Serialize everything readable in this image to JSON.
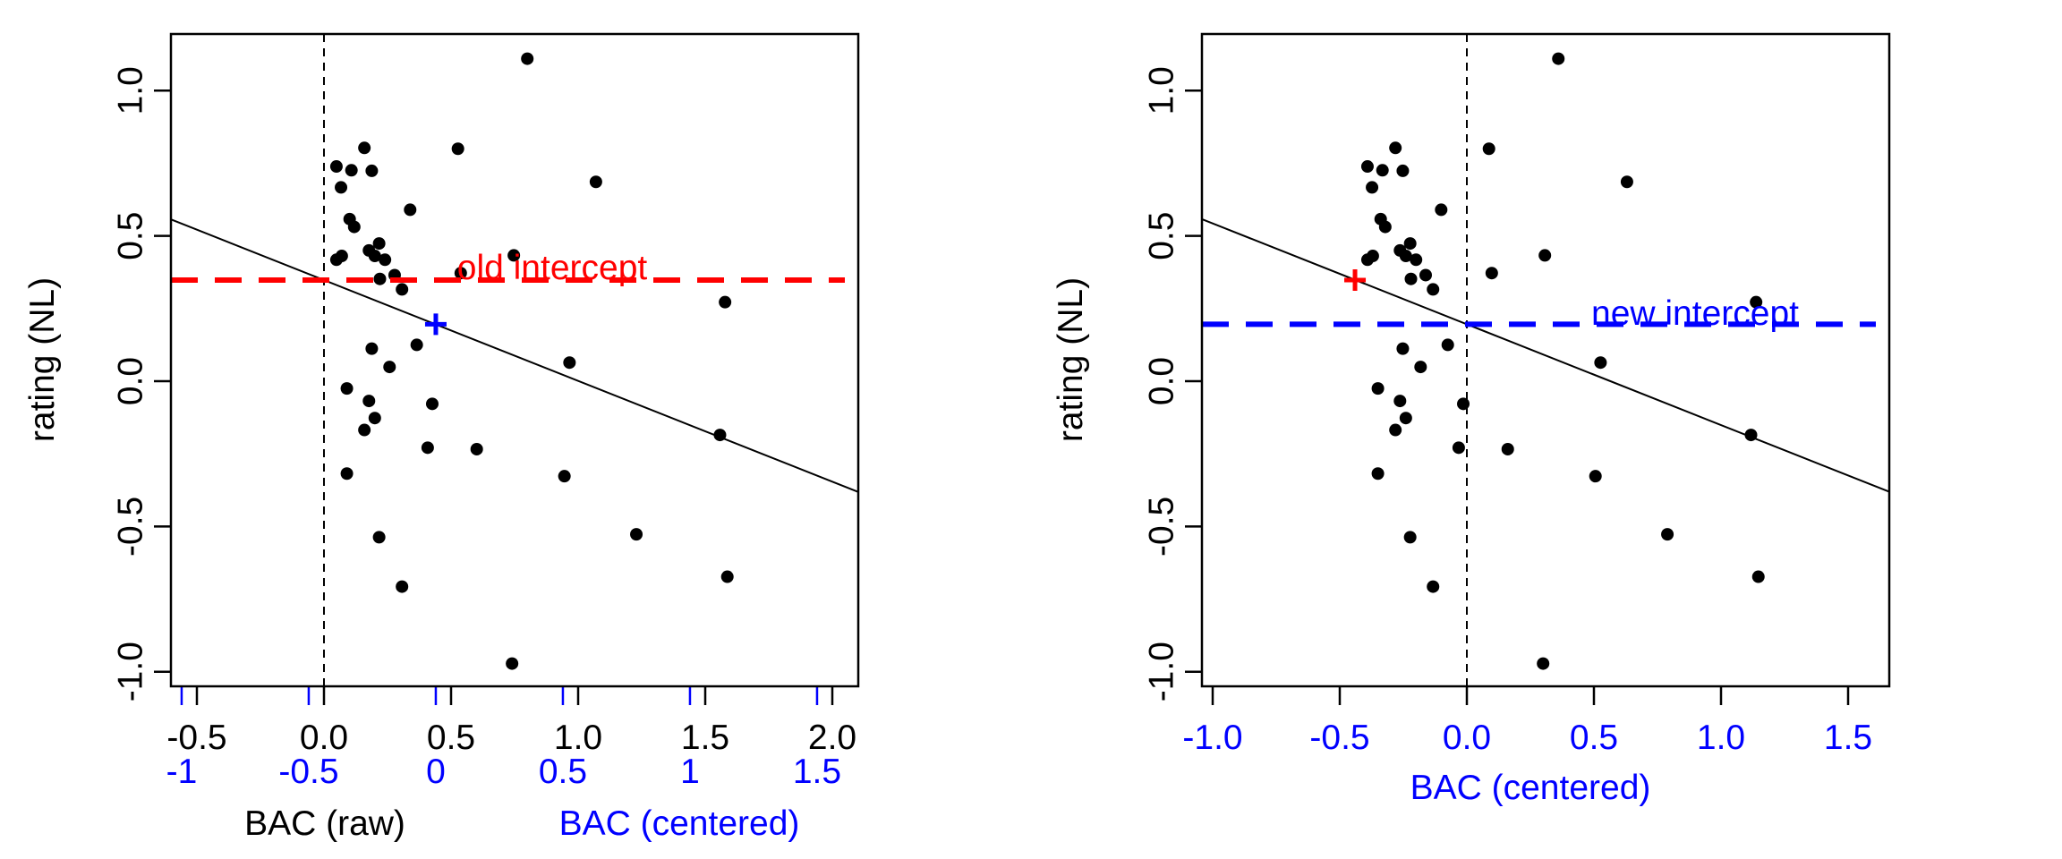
{
  "colors": {
    "points": "#000000",
    "old_intercept": "#ff0000",
    "new_intercept": "#0000ff",
    "fit_line": "#000000",
    "centered_axis": "#0000ff"
  },
  "chart_data": [
    {
      "type": "scatter",
      "title": "",
      "xlabel": "BAC (raw)",
      "xlabel2": "BAC (centered)",
      "ylabel": "rating (NL)",
      "xlim": [
        -0.6,
        2.1
      ],
      "ylim": [
        -1.05,
        1.195
      ],
      "xticks": [
        "-0.5",
        "0.0",
        "0.5",
        "1.0",
        "1.5",
        "2.0"
      ],
      "xticks2": [
        "-1",
        "-0.5",
        "0",
        "0.5",
        "1",
        "1.5"
      ],
      "yticks": [
        "-1.0",
        "-0.5",
        "0.0",
        "0.5",
        "1.0"
      ],
      "centering_mean": 0.44,
      "fit": {
        "intercept": 0.348,
        "slope": -0.347
      },
      "annotation": "old intercept",
      "intercept_line_y": 0.348,
      "marker": {
        "x": 0.44,
        "y": 0.196,
        "shape": "plus",
        "color": "blue"
      },
      "points": [
        [
          0.8,
          1.11
        ],
        [
          0.159,
          0.803
        ],
        [
          0.049,
          0.739
        ],
        [
          0.108,
          0.726
        ],
        [
          0.188,
          0.724
        ],
        [
          0.067,
          0.667
        ],
        [
          0.527,
          0.8
        ],
        [
          1.07,
          0.686
        ],
        [
          0.339,
          0.59
        ],
        [
          0.101,
          0.558
        ],
        [
          0.119,
          0.531
        ],
        [
          0.217,
          0.474
        ],
        [
          0.177,
          0.45
        ],
        [
          0.2,
          0.431
        ],
        [
          0.24,
          0.418
        ],
        [
          0.049,
          0.418
        ],
        [
          0.07,
          0.431
        ],
        [
          0.747,
          0.433
        ],
        [
          0.22,
          0.352
        ],
        [
          0.278,
          0.365
        ],
        [
          0.307,
          0.316
        ],
        [
          0.538,
          0.372
        ],
        [
          1.578,
          0.272
        ],
        [
          0.188,
          0.112
        ],
        [
          0.365,
          0.125
        ],
        [
          0.258,
          0.049
        ],
        [
          0.966,
          0.064
        ],
        [
          0.09,
          -0.025
        ],
        [
          0.177,
          -0.068
        ],
        [
          0.426,
          -0.078
        ],
        [
          0.2,
          -0.127
        ],
        [
          0.159,
          -0.168
        ],
        [
          0.408,
          -0.229
        ],
        [
          0.601,
          -0.234
        ],
        [
          0.09,
          -0.318
        ],
        [
          0.946,
          -0.327
        ],
        [
          1.558,
          -0.185
        ],
        [
          0.217,
          -0.537
        ],
        [
          1.229,
          -0.527
        ],
        [
          0.307,
          -0.707
        ],
        [
          1.587,
          -0.673
        ],
        [
          0.74,
          -0.972
        ]
      ]
    },
    {
      "type": "scatter",
      "title": "",
      "xlabel": "BAC (centered)",
      "ylabel": "rating (NL)",
      "xlim": [
        -1.04,
        1.66
      ],
      "ylim": [
        -1.05,
        1.195
      ],
      "xticks": [
        "-1.0",
        "-0.5",
        "0.0",
        "0.5",
        "1.0",
        "1.5"
      ],
      "yticks": [
        "-1.0",
        "-0.5",
        "0.0",
        "0.5",
        "1.0"
      ],
      "fit": {
        "intercept": 0.196,
        "slope": -0.347
      },
      "annotation": "new intercept",
      "intercept_line_y": 0.196,
      "marker": {
        "x": -0.44,
        "y": 0.348,
        "shape": "plus",
        "color": "red"
      },
      "points_note_shift": -0.44
    }
  ]
}
